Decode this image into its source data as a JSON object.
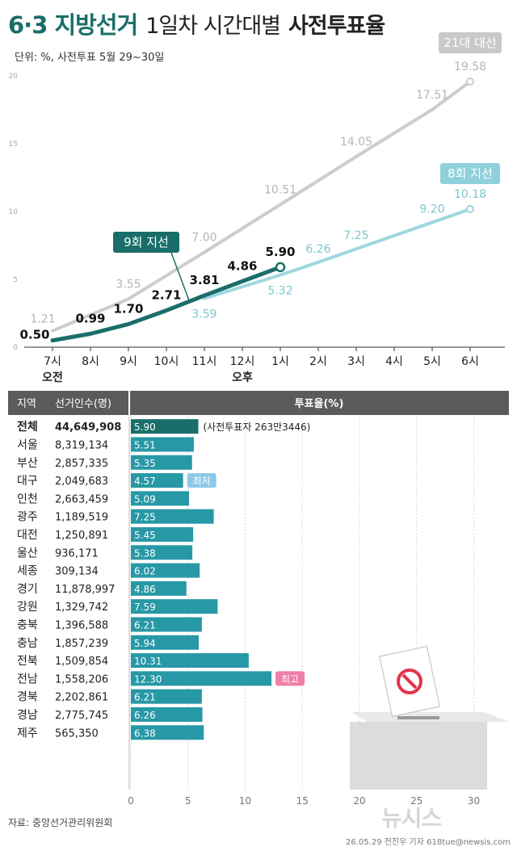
{
  "header": {
    "title_main": "6·3 지방선거",
    "title_sub": "1일차 시간대별",
    "title_bold": "사전투표율",
    "unit": "단위: %, 사전투표 5월 29~30일"
  },
  "chart_data": [
    {
      "type": "line",
      "x": [
        "7시",
        "8시",
        "9시",
        "10시",
        "11시",
        "12시",
        "1시",
        "2시",
        "3시",
        "4시",
        "5시",
        "6시"
      ],
      "x_sublabels": [
        {
          "at": "7시",
          "label": "오전"
        },
        {
          "at": "12시",
          "label": "오후"
        }
      ],
      "ylim": [
        0,
        20
      ],
      "y_ticks": [
        "0",
        "5",
        "10",
        "15",
        "20"
      ],
      "series": [
        {
          "name": "21대 대선",
          "color": "#cccccc",
          "values": [
            "1.21",
            "",
            "3.55",
            "",
            "7.00",
            "",
            "10.51",
            "",
            "14.05",
            "",
            "17.51",
            "19.58"
          ]
        },
        {
          "name": "8회 지선",
          "color": "#9fd7de",
          "values": [
            "",
            "",
            "",
            "",
            "3.59",
            "",
            "5.32",
            "6.26",
            "7.25",
            "",
            "9.20",
            "10.18"
          ]
        },
        {
          "name": "9회 지선",
          "color": "#1a6e6a",
          "values": [
            "0.50",
            "0.99",
            "1.70",
            "2.71",
            "3.81",
            "4.86",
            "5.90",
            "",
            "",
            "",
            "",
            ""
          ]
        }
      ]
    },
    {
      "type": "bar",
      "columns": [
        "지역",
        "선거인수(명)",
        "투표율(%)"
      ],
      "x_ticks": [
        "0",
        "5",
        "10",
        "15",
        "20",
        "25",
        "30"
      ],
      "xlim": [
        0,
        30
      ],
      "rows": [
        {
          "region": "전체",
          "voters": "44,649,908",
          "rate": "5.90",
          "note": "(사전투표자 263만3446)",
          "total": true
        },
        {
          "region": "서울",
          "voters": "8,319,134",
          "rate": "5.51"
        },
        {
          "region": "부산",
          "voters": "2,857,335",
          "rate": "5.35"
        },
        {
          "region": "대구",
          "voters": "2,049,683",
          "rate": "4.57",
          "badge": "최저"
        },
        {
          "region": "인천",
          "voters": "2,663,459",
          "rate": "5.09"
        },
        {
          "region": "광주",
          "voters": "1,189,519",
          "rate": "7.25"
        },
        {
          "region": "대전",
          "voters": "1,250,891",
          "rate": "5.45"
        },
        {
          "region": "울산",
          "voters": "936,171",
          "rate": "5.38"
        },
        {
          "region": "세종",
          "voters": "309,134",
          "rate": "6.02"
        },
        {
          "region": "경기",
          "voters": "11,878,997",
          "rate": "4.86"
        },
        {
          "region": "강원",
          "voters": "1,329,742",
          "rate": "7.59"
        },
        {
          "region": "충북",
          "voters": "1,396,588",
          "rate": "6.21"
        },
        {
          "region": "충남",
          "voters": "1,857,239",
          "rate": "5.94"
        },
        {
          "region": "전북",
          "voters": "1,509,854",
          "rate": "10.31"
        },
        {
          "region": "전남",
          "voters": "1,558,206",
          "rate": "12.30",
          "badge": "최고"
        },
        {
          "region": "경북",
          "voters": "2,202,861",
          "rate": "6.21"
        },
        {
          "region": "경남",
          "voters": "2,775,745",
          "rate": "6.26"
        },
        {
          "region": "제주",
          "voters": "565,350",
          "rate": "6.38"
        }
      ]
    }
  ],
  "footer": {
    "source": "자료: 중앙선거관리위원회",
    "credit": "26.05.29 전진우 기자 618tue@newsis.com",
    "watermark": "뉴시스"
  },
  "colors": {
    "accent": "#1a6e6a",
    "bar": "#2798a6",
    "prev8": "#9fd7de",
    "prev21": "#cccccc",
    "low_badge": "#8ec9ea",
    "high_badge": "#ef7fa9"
  }
}
